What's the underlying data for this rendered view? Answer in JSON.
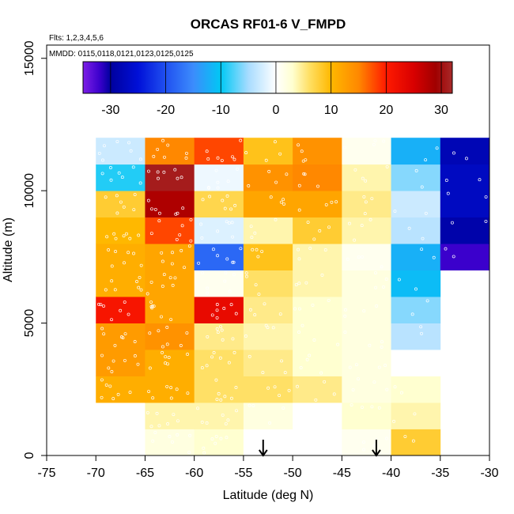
{
  "chart_data": {
    "type": "heatmap",
    "title": "ORCAS RF01-6 V_FMPD",
    "subtitle_flights": "Flts: 1,2,3,4,5,6",
    "subtitle_dates": "MMDD: 0115,0118,0121,0123,0125,0125",
    "xlabel": "Latitude (deg N)",
    "ylabel": "Altitude (m)",
    "xlim": [
      -75,
      -30
    ],
    "ylim": [
      0,
      15500
    ],
    "x_ticks": [
      -75,
      -70,
      -65,
      -60,
      -55,
      -50,
      -45,
      -40,
      -35,
      -30
    ],
    "x_tick_labels": [
      "-75",
      "-70",
      "-65",
      "-60",
      "-55",
      "-50",
      "-45",
      "-40",
      "-35",
      "-30"
    ],
    "y_ticks": [
      0,
      5000,
      10000,
      15000
    ],
    "y_tick_labels": [
      "0",
      "5000",
      "10000",
      "15000"
    ],
    "lat_bin_edges": [
      -70,
      -65,
      -60,
      -55,
      -50,
      -45,
      -40,
      -35,
      -30
    ],
    "alt_bin_edges": [
      0,
      1000,
      2000,
      3000,
      4000,
      5000,
      6000,
      7000,
      8000,
      9000,
      10000,
      11000,
      12000
    ],
    "values": [
      [
        0,
        2,
        3,
        0,
        0,
        1,
        8,
        null
      ],
      [
        0,
        4,
        4,
        2,
        0,
        3,
        4,
        null
      ],
      [
        11,
        11,
        6,
        6,
        5,
        2,
        3,
        null
      ],
      [
        13,
        11,
        6,
        5,
        3,
        2,
        0,
        null
      ],
      [
        13,
        14,
        5,
        4,
        3,
        2,
        -4,
        null
      ],
      [
        21,
        12,
        23,
        5,
        3,
        2,
        -6,
        null
      ],
      [
        11,
        12,
        1,
        6,
        4,
        2,
        -11,
        null
      ],
      [
        11,
        12,
        -18,
        9,
        4,
        1,
        -12,
        -32
      ],
      [
        10,
        18,
        -2,
        4,
        8,
        4,
        -4,
        -29
      ],
      [
        8,
        28,
        7,
        12,
        12,
        5,
        -3,
        -27
      ],
      [
        -9,
        31,
        -1,
        14,
        15,
        4,
        -6,
        -27
      ],
      [
        -3,
        15,
        18,
        9,
        14,
        1,
        -12,
        -28
      ]
    ],
    "colorbar": {
      "min": -35,
      "max": 32,
      "ticks": [
        -30,
        -20,
        -10,
        0,
        10,
        20,
        30
      ],
      "tick_labels": [
        "-30",
        "-20",
        "-10",
        "0",
        "10",
        "20",
        "30"
      ],
      "stops": [
        {
          "v": -35,
          "c": "#7d1fe6"
        },
        {
          "v": -32,
          "c": "#3b00cc"
        },
        {
          "v": -30,
          "c": "#00009e"
        },
        {
          "v": -25,
          "c": "#0010d8"
        },
        {
          "v": -20,
          "c": "#2050f0"
        },
        {
          "v": -15,
          "c": "#3c8cfc"
        },
        {
          "v": -10,
          "c": "#00c8f4"
        },
        {
          "v": -5,
          "c": "#a8dcff"
        },
        {
          "v": 0,
          "c": "#ffffff"
        },
        {
          "v": 3,
          "c": "#ffffd0"
        },
        {
          "v": 6,
          "c": "#ffe066"
        },
        {
          "v": 10,
          "c": "#ffb800"
        },
        {
          "v": 15,
          "c": "#ff8800"
        },
        {
          "v": 20,
          "c": "#ff1a00"
        },
        {
          "v": 25,
          "c": "#d80000"
        },
        {
          "v": 29,
          "c": "#a00000"
        },
        {
          "v": 32,
          "c": "#a82a2a"
        }
      ]
    },
    "arrows": [
      {
        "lat": -53,
        "direction": "down"
      },
      {
        "lat": -41.5,
        "direction": "down"
      }
    ]
  }
}
